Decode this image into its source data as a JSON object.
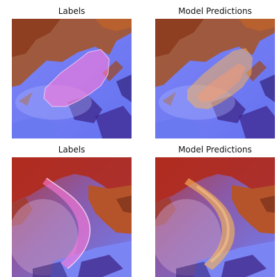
{
  "panels": [
    {
      "title": "Labels",
      "overlay_color": "#ff7ad9"
    },
    {
      "title": "Model Predictions",
      "overlay_color": "#f6b25a"
    },
    {
      "title": "Labels",
      "overlay_color": "#ff7ad9"
    },
    {
      "title": "Model Predictions",
      "overlay_color": "#f6b25a"
    }
  ],
  "colors": {
    "sea_blue": "#6a78f2",
    "sea_light": "#8c9bff",
    "land_brown": "#a3552a",
    "land_red": "#b02a1c",
    "land_orange": "#d2772e",
    "dark_purple": "#2a1468"
  }
}
